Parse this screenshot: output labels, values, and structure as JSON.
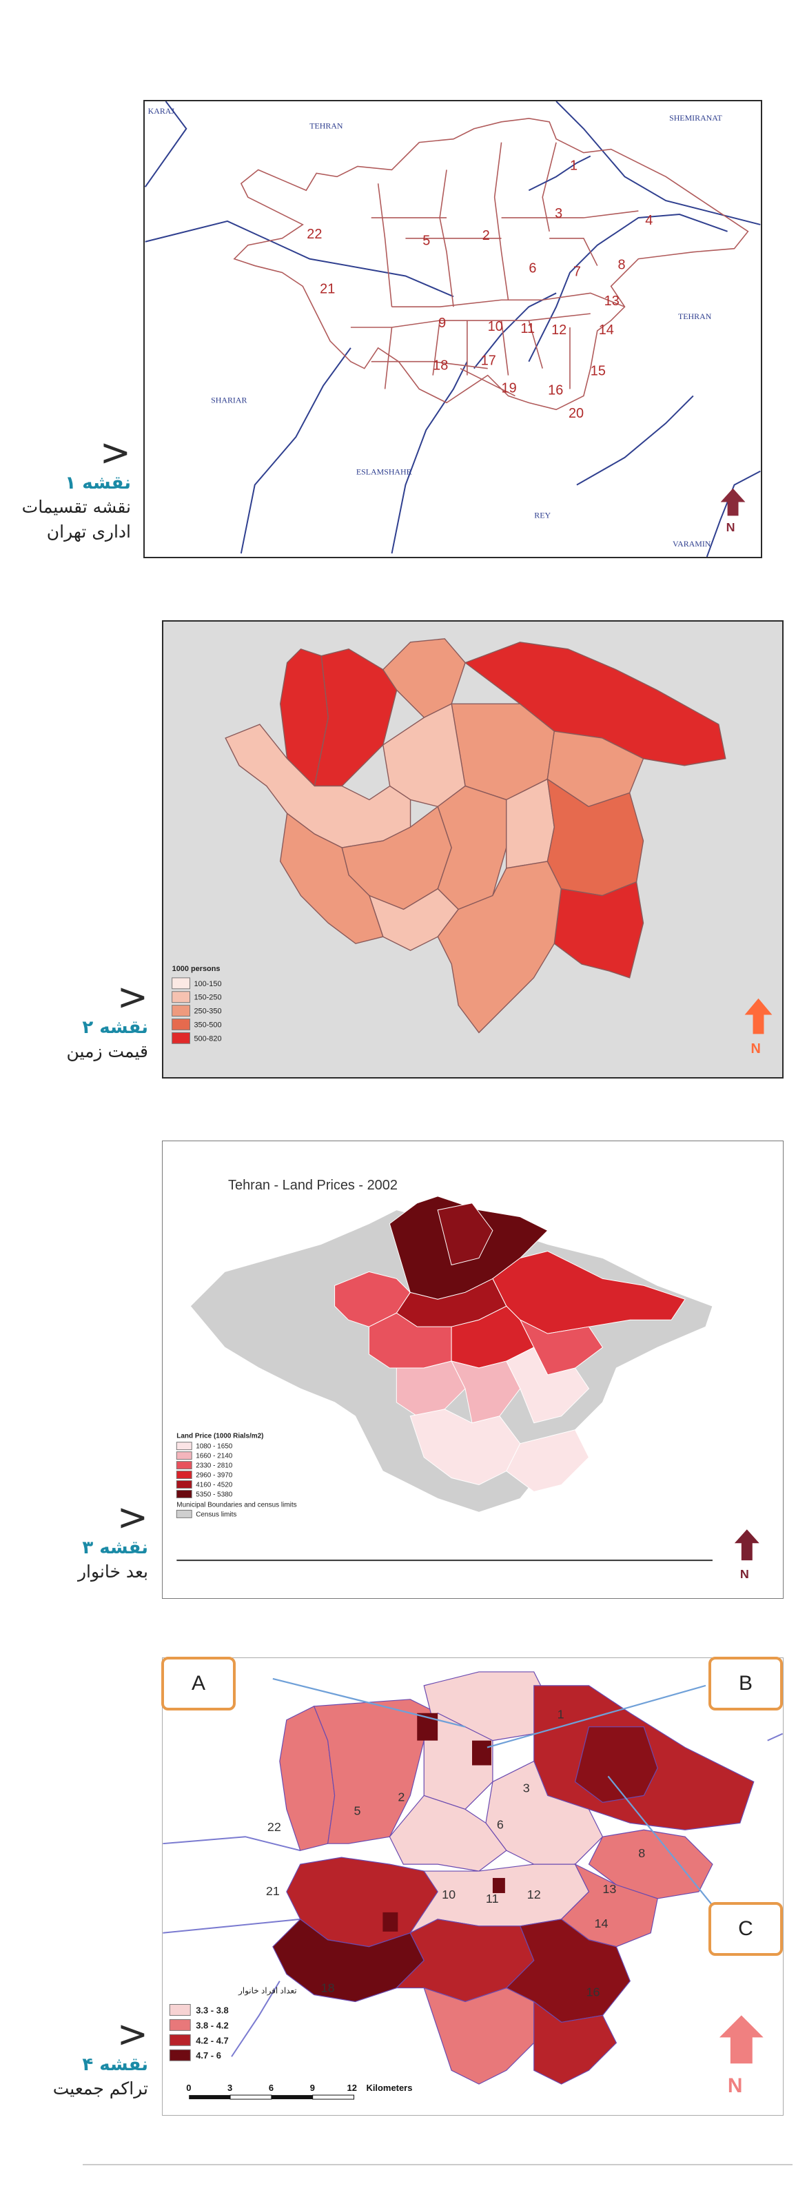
{
  "maps": [
    {
      "caption_num": "نقشه ۱",
      "caption_text_1": "نقشه تقسیمات",
      "caption_text_2": "اداری تهران",
      "labels": {
        "karaj": "KARAJ",
        "tehran_top": "TEHRAN",
        "shemiranat": "SHEMIRANAT",
        "tehran_right": "TEHRAN",
        "shariar": "SHARIAR",
        "eslamshahr": "ESLAMSHAHR",
        "rey": "REY",
        "varamin": "VARAMIN"
      },
      "districts": [
        "1",
        "2",
        "3",
        "4",
        "5",
        "6",
        "7",
        "8",
        "9",
        "10",
        "11",
        "12",
        "13",
        "14",
        "15",
        "16",
        "17",
        "18",
        "19",
        "20",
        "21",
        "22"
      ],
      "north": "N"
    },
    {
      "caption_num": "نقشه ۲",
      "caption_text_1": "قیمت زمین",
      "legend_title": "1000 persons",
      "legend": [
        "100-150",
        "150-250",
        "250-350",
        "350-500",
        "500-820"
      ],
      "legend_colors": [
        "#fbe9e4",
        "#f6c2b1",
        "#ee9a7e",
        "#e66a4e",
        "#e02a2a"
      ],
      "north": "N"
    },
    {
      "caption_num": "نقشه ۳",
      "caption_text_1": "بعد خانوار",
      "title": "Tehran - Land Prices - 2002",
      "legend_title": "Land Price (1000 Rials/m2)",
      "legend": [
        "1080 - 1650",
        "1660 - 2140",
        "2330 - 2810",
        "2960 - 3970",
        "4160 - 4520",
        "5350 - 5380"
      ],
      "legend_colors": [
        "#fbe4e6",
        "#f4b5bc",
        "#e8525d",
        "#d8232a",
        "#a8141c",
        "#6a0a10"
      ],
      "legend_extra": [
        "Municipal Boundaries and census limits",
        "Census limits"
      ],
      "north": "N"
    },
    {
      "caption_num": "نقشه ۴",
      "caption_text_1": "تراکم جمعیت",
      "callouts": [
        "A",
        "B",
        "C"
      ],
      "legend_title": "تعداد افراد خانوار",
      "legend": [
        "3.3 - 3.8",
        "3.8 - 4.2",
        "4.2 - 4.7",
        "4.7 - 6"
      ],
      "legend_colors": [
        "#f7d3d3",
        "#e8787a",
        "#b8232a",
        "#6e0a12"
      ],
      "districts": [
        "1",
        "2",
        "3",
        "5",
        "6",
        "8",
        "10",
        "11",
        "12",
        "13",
        "14",
        "16",
        "18",
        "21",
        "22"
      ],
      "scale": [
        "0",
        "3",
        "6",
        "9",
        "12",
        "Kilometers"
      ],
      "north": "N"
    }
  ]
}
